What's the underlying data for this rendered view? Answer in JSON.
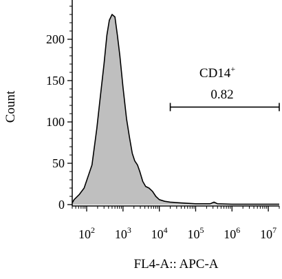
{
  "chart_data": {
    "type": "area",
    "title": "",
    "xlabel": "FL4-A:: APC-A",
    "ylabel": "Count",
    "x_scale": "log",
    "xlim": [
      40,
      20000000
    ],
    "ylim": [
      0,
      250
    ],
    "x_ticks": [
      {
        "value": 100,
        "base": "10",
        "exp": "2"
      },
      {
        "value": 1000,
        "base": "10",
        "exp": "3"
      },
      {
        "value": 10000,
        "base": "10",
        "exp": "4"
      },
      {
        "value": 100000,
        "base": "10",
        "exp": "5"
      },
      {
        "value": 1000000,
        "base": "10",
        "exp": "6"
      },
      {
        "value": 10000000,
        "base": "10",
        "exp": "7"
      }
    ],
    "y_ticks": [
      {
        "value": 0,
        "label": "0"
      },
      {
        "value": 50,
        "label": "50"
      },
      {
        "value": 100,
        "label": "100"
      },
      {
        "value": 150,
        "label": "150"
      },
      {
        "value": 200,
        "label": "200"
      }
    ],
    "series": [
      {
        "fill": "#bfbfbf",
        "stroke": "#000000",
        "points": [
          {
            "x": 40,
            "y": 2
          },
          {
            "x": 45,
            "y": 6
          },
          {
            "x": 62,
            "y": 12
          },
          {
            "x": 85,
            "y": 20
          },
          {
            "x": 140,
            "y": 48
          },
          {
            "x": 190,
            "y": 92
          },
          {
            "x": 230,
            "y": 125
          },
          {
            "x": 300,
            "y": 170
          },
          {
            "x": 360,
            "y": 205
          },
          {
            "x": 420,
            "y": 223
          },
          {
            "x": 500,
            "y": 230
          },
          {
            "x": 600,
            "y": 227
          },
          {
            "x": 700,
            "y": 205
          },
          {
            "x": 820,
            "y": 180
          },
          {
            "x": 1000,
            "y": 142
          },
          {
            "x": 1250,
            "y": 104
          },
          {
            "x": 1500,
            "y": 82
          },
          {
            "x": 1800,
            "y": 62
          },
          {
            "x": 2100,
            "y": 53
          },
          {
            "x": 2500,
            "y": 48
          },
          {
            "x": 2900,
            "y": 40
          },
          {
            "x": 3500,
            "y": 28
          },
          {
            "x": 4200,
            "y": 22
          },
          {
            "x": 5200,
            "y": 20
          },
          {
            "x": 6500,
            "y": 16
          },
          {
            "x": 8000,
            "y": 10
          },
          {
            "x": 10000,
            "y": 6
          },
          {
            "x": 14000,
            "y": 4
          },
          {
            "x": 20000,
            "y": 3
          },
          {
            "x": 40000,
            "y": 2
          },
          {
            "x": 100000,
            "y": 1
          },
          {
            "x": 250000,
            "y": 1
          },
          {
            "x": 320000,
            "y": 3
          },
          {
            "x": 400000,
            "y": 1
          },
          {
            "x": 1000000,
            "y": 0.5
          },
          {
            "x": 20000000,
            "y": 0.5
          }
        ]
      }
    ],
    "gate": {
      "name": "CD14",
      "superscript": "+",
      "value": "0.82",
      "x_start": 20000,
      "x_end": 20000000,
      "y": 118
    },
    "grid": false,
    "legend": "none"
  }
}
